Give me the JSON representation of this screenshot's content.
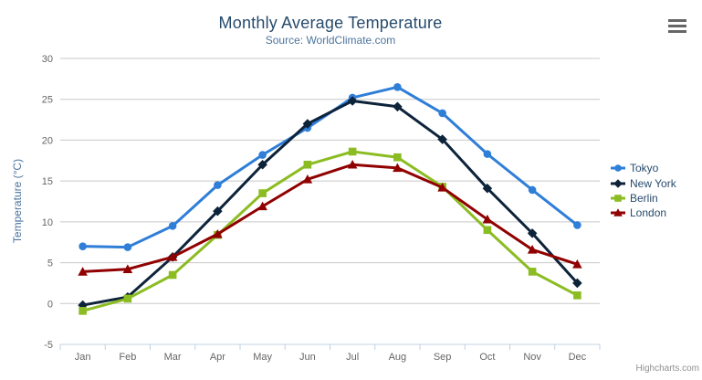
{
  "chart_data": {
    "type": "line",
    "title": "Monthly Average Temperature",
    "subtitle": "Source: WorldClimate.com",
    "xlabel": "",
    "ylabel": "Temperature (°C)",
    "categories": [
      "Jan",
      "Feb",
      "Mar",
      "Apr",
      "May",
      "Jun",
      "Jul",
      "Aug",
      "Sep",
      "Oct",
      "Nov",
      "Dec"
    ],
    "ylim": [
      -5,
      30
    ],
    "ytick_interval": 5,
    "ytick_labels": [
      "-5",
      "0",
      "5",
      "10",
      "15",
      "20",
      "25",
      "30"
    ],
    "grid": true,
    "legend_position": "right",
    "series": [
      {
        "name": "Tokyo",
        "color": "#2f7ed8",
        "marker": "circle",
        "values": [
          7.0,
          6.9,
          9.5,
          14.5,
          18.2,
          21.5,
          25.2,
          26.5,
          23.3,
          18.3,
          13.9,
          9.6
        ]
      },
      {
        "name": "New York",
        "color": "#0d233a",
        "marker": "diamond",
        "values": [
          -0.2,
          0.8,
          5.7,
          11.3,
          17.0,
          22.0,
          24.8,
          24.1,
          20.1,
          14.1,
          8.6,
          2.5
        ]
      },
      {
        "name": "Berlin",
        "color": "#8bbc21",
        "marker": "square",
        "values": [
          -0.9,
          0.6,
          3.5,
          8.4,
          13.5,
          17.0,
          18.6,
          17.9,
          14.3,
          9.0,
          3.9,
          1.0
        ]
      },
      {
        "name": "London",
        "color": "#910000",
        "marker": "triangle",
        "values": [
          3.9,
          4.2,
          5.7,
          8.5,
          11.9,
          15.2,
          17.0,
          16.6,
          14.2,
          10.3,
          6.6,
          4.8
        ]
      }
    ]
  },
  "export_menu": {
    "icon": "hamburger-icon"
  },
  "credits": {
    "label": "Highcharts.com"
  },
  "colors": {
    "background": "#ffffff",
    "title": "#274b6d",
    "subtitle": "#4d759e",
    "y_axis_title": "#4d759e",
    "axis_label": "#666666",
    "axis_line": "#c0d0e0",
    "grid": "#c8c8c8",
    "legend_text": "#274b6d",
    "credits": "#909090",
    "menu_icon": "#666666"
  }
}
